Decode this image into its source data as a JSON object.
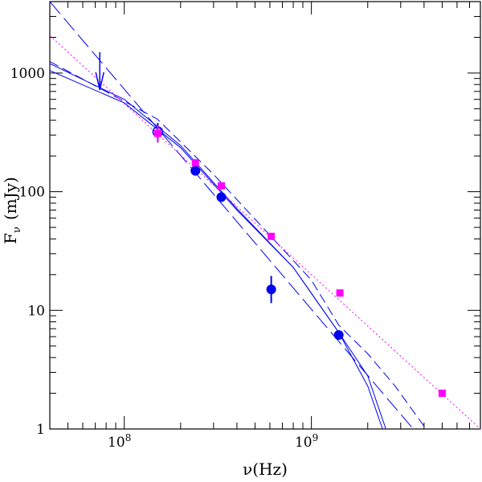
{
  "chart_data": {
    "type": "scatter",
    "title": "",
    "x_scale": "log",
    "y_scale": "log",
    "xlim": [
      40000000,
      8000000000
    ],
    "ylim": [
      1,
      4000
    ],
    "xlabel": {
      "symbol": "ν",
      "unit": "(Hz)"
    },
    "ylabel": {
      "symbol": "F",
      "subscript": "ν",
      "unit": "(mJy)"
    },
    "x_ticks": [
      {
        "value": 100000000,
        "base": "10",
        "exp": "8"
      },
      {
        "value": 1000000000,
        "base": "10",
        "exp": "9"
      }
    ],
    "y_ticks": [
      {
        "value": 1,
        "label": "1"
      },
      {
        "value": 10,
        "label": "10"
      },
      {
        "value": 100,
        "label": "100"
      },
      {
        "value": 1000,
        "label": "1000"
      }
    ],
    "series": [
      {
        "marker": "circle",
        "color": "#0000ee",
        "points": [
          {
            "x": 240000000,
            "y": 150,
            "yerr": [
              10,
              10
            ]
          },
          {
            "x": 330000000,
            "y": 90,
            "yerr": [
              5,
              5
            ]
          },
          {
            "x": 610000000,
            "y": 15,
            "yerr": [
              3.5,
              4.5
            ]
          },
          {
            "x": 1400000000,
            "y": 6.2,
            "yerr": [
              0.5,
              0.5
            ]
          }
        ]
      },
      {
        "marker": "open-circle",
        "color": "#0000ee",
        "points": [
          {
            "x": 151000000,
            "y": 320,
            "yerr": [
              60,
              60
            ]
          }
        ]
      },
      {
        "marker": "square",
        "color": "#ff00ff",
        "points": [
          {
            "x": 151000000,
            "y": 310,
            "yerr": [
              50,
              50
            ]
          },
          {
            "x": 240000000,
            "y": 175
          },
          {
            "x": 330000000,
            "y": 112
          },
          {
            "x": 610000000,
            "y": 42
          },
          {
            "x": 1420000000,
            "y": 14
          },
          {
            "x": 5000000000,
            "y": 2
          }
        ]
      },
      {
        "marker": "upper-limit",
        "color": "#0000ee",
        "points": [
          {
            "x": 74000000,
            "y": 1500,
            "to": 720
          }
        ]
      }
    ],
    "models": [
      {
        "style": "solid",
        "color": "#0000ee",
        "points": [
          [
            40000000,
            1050
          ],
          [
            100000000,
            560
          ],
          [
            200000000,
            235
          ],
          [
            400000000,
            70
          ],
          [
            800000000,
            23
          ],
          [
            1400000000,
            6.5
          ],
          [
            2000000000,
            2.8
          ],
          [
            2500000000,
            1
          ]
        ]
      },
      {
        "style": "solid",
        "color": "#0000ee",
        "points": [
          [
            40000000,
            1200
          ],
          [
            100000000,
            600
          ],
          [
            200000000,
            245
          ],
          [
            400000000,
            72
          ],
          [
            800000000,
            23
          ],
          [
            1400000000,
            6.5
          ],
          [
            2000000000,
            2.3
          ],
          [
            2400000000,
            1
          ]
        ]
      },
      {
        "style": "long-dash",
        "color": "#0000ee",
        "points": [
          [
            40000000,
            4000
          ],
          [
            3500000000,
            1
          ]
        ]
      },
      {
        "style": "short-dash",
        "color": "#0000ee",
        "points": [
          [
            40000000,
            1250
          ],
          [
            150000000,
            410
          ],
          [
            300000000,
            140
          ],
          [
            1000000000,
            18
          ],
          [
            1400000000,
            7.5
          ],
          [
            2000000000,
            4.3
          ],
          [
            2800000000,
            2.3
          ],
          [
            4100000000,
            1
          ]
        ]
      },
      {
        "style": "dotted",
        "color": "#ff00ff",
        "points": [
          [
            40000000,
            2070
          ],
          [
            8000000000,
            1
          ]
        ]
      }
    ]
  }
}
